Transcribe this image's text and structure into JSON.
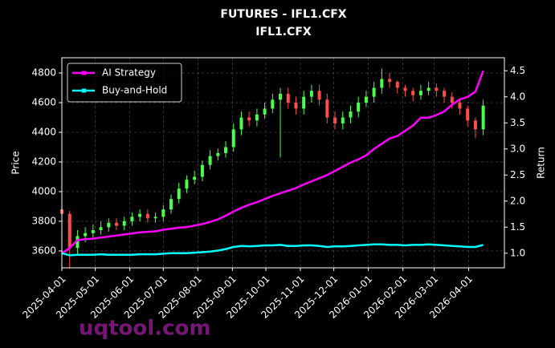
{
  "chart_data": {
    "type": "candlestick",
    "title": "FUTURES - IFL1.CFX",
    "subtitle": "IFL1.CFX",
    "y_label": "Price",
    "y2_label": "Return",
    "watermark": "uqtool.com",
    "x": [
      "2025-04-01",
      "2025-04-08",
      "2025-04-15",
      "2025-04-22",
      "2025-04-29",
      "2025-05-06",
      "2025-05-13",
      "2025-05-20",
      "2025-05-27",
      "2025-06-03",
      "2025-06-10",
      "2025-06-17",
      "2025-06-24",
      "2025-07-01",
      "2025-07-08",
      "2025-07-15",
      "2025-07-22",
      "2025-07-29",
      "2025-08-05",
      "2025-08-12",
      "2025-08-19",
      "2025-08-26",
      "2025-09-02",
      "2025-09-09",
      "2025-09-16",
      "2025-09-23",
      "2025-09-30",
      "2025-10-07",
      "2025-10-14",
      "2025-10-21",
      "2025-10-28",
      "2025-11-04",
      "2025-11-11",
      "2025-11-18",
      "2025-11-25",
      "2025-12-02",
      "2025-12-09",
      "2025-12-16",
      "2025-12-23",
      "2025-12-30",
      "2026-01-06",
      "2026-01-13",
      "2026-01-20",
      "2026-01-27",
      "2026-02-03",
      "2026-02-10",
      "2026-02-17",
      "2026-02-24",
      "2026-03-03",
      "2026-03-10",
      "2026-03-17",
      "2026-03-24",
      "2026-03-31",
      "2026-04-07",
      "2026-04-14"
    ],
    "open": [
      3880,
      3850,
      3620,
      3700,
      3720,
      3740,
      3760,
      3790,
      3770,
      3800,
      3830,
      3850,
      3820,
      3830,
      3880,
      3950,
      4020,
      4080,
      4100,
      4180,
      4240,
      4260,
      4300,
      4420,
      4500,
      4480,
      4520,
      4560,
      4620,
      4660,
      4600,
      4560,
      4640,
      4680,
      4620,
      4500,
      4460,
      4500,
      4540,
      4600,
      4640,
      4700,
      4760,
      4740,
      4700,
      4680,
      4650,
      4680,
      4700,
      4680,
      4640,
      4600,
      4560,
      4480,
      4420
    ],
    "high": [
      3910,
      3870,
      3740,
      3760,
      3780,
      3800,
      3820,
      3820,
      3830,
      3860,
      3880,
      3880,
      3860,
      3910,
      3980,
      4060,
      4110,
      4140,
      4210,
      4280,
      4290,
      4340,
      4460,
      4540,
      4540,
      4560,
      4600,
      4660,
      4700,
      4700,
      4640,
      4680,
      4720,
      4720,
      4660,
      4540,
      4540,
      4580,
      4640,
      4680,
      4740,
      4830,
      4800,
      4750,
      4720,
      4700,
      4720,
      4740,
      4730,
      4700,
      4670,
      4620,
      4580,
      4500,
      4620
    ],
    "low": [
      3820,
      3480,
      3580,
      3660,
      3690,
      3710,
      3730,
      3740,
      3740,
      3770,
      3800,
      3790,
      3790,
      3800,
      3850,
      3920,
      3990,
      4050,
      4070,
      4150,
      4210,
      4230,
      4270,
      4380,
      4440,
      4440,
      4490,
      4530,
      4230,
      4560,
      4520,
      4520,
      4600,
      4580,
      4460,
      4420,
      4420,
      4460,
      4500,
      4570,
      4600,
      4660,
      4700,
      4660,
      4640,
      4610,
      4620,
      4650,
      4640,
      4600,
      4560,
      4520,
      4440,
      4360,
      4380
    ],
    "close": [
      3850,
      3620,
      3700,
      3720,
      3740,
      3760,
      3790,
      3770,
      3800,
      3830,
      3850,
      3820,
      3830,
      3880,
      3950,
      4020,
      4080,
      4100,
      4180,
      4240,
      4260,
      4300,
      4420,
      4500,
      4480,
      4520,
      4560,
      4620,
      4660,
      4600,
      4560,
      4640,
      4680,
      4620,
      4500,
      4460,
      4500,
      4540,
      4600,
      4640,
      4700,
      4760,
      4740,
      4700,
      4680,
      4650,
      4680,
      4700,
      4680,
      4640,
      4600,
      4560,
      4480,
      4420,
      4580
    ],
    "up_color": "#4cff4c",
    "down_color": "#ff4d4d",
    "series": [
      {
        "name": "AI Strategy",
        "color": "#ff00ff",
        "axis": "y2",
        "values": [
          1.0,
          1.1,
          1.25,
          1.27,
          1.28,
          1.3,
          1.32,
          1.34,
          1.36,
          1.38,
          1.4,
          1.41,
          1.42,
          1.45,
          1.47,
          1.49,
          1.5,
          1.53,
          1.56,
          1.6,
          1.65,
          1.72,
          1.8,
          1.87,
          1.93,
          1.98,
          2.04,
          2.1,
          2.15,
          2.2,
          2.25,
          2.32,
          2.38,
          2.44,
          2.5,
          2.58,
          2.66,
          2.74,
          2.8,
          2.88,
          3.0,
          3.1,
          3.2,
          3.25,
          3.35,
          3.45,
          3.6,
          3.6,
          3.65,
          3.72,
          3.85,
          3.95,
          4.0,
          4.1,
          4.5
        ]
      },
      {
        "name": "Buy-and-Hold",
        "color": "#00ffff",
        "axis": "y2",
        "values": [
          1.0,
          0.96,
          0.97,
          0.97,
          0.97,
          0.98,
          0.97,
          0.97,
          0.97,
          0.97,
          0.98,
          0.98,
          0.98,
          0.99,
          1.0,
          1.0,
          1.0,
          1.01,
          1.02,
          1.03,
          1.05,
          1.08,
          1.12,
          1.14,
          1.13,
          1.14,
          1.15,
          1.15,
          1.16,
          1.14,
          1.14,
          1.15,
          1.15,
          1.14,
          1.12,
          1.13,
          1.13,
          1.14,
          1.15,
          1.16,
          1.17,
          1.17,
          1.16,
          1.16,
          1.15,
          1.16,
          1.16,
          1.17,
          1.16,
          1.15,
          1.14,
          1.13,
          1.12,
          1.12,
          1.16
        ]
      }
    ],
    "xlim": [
      "2025-04-01",
      "2026-05-03"
    ],
    "xticks": [
      "2025-04-01",
      "2025-05-01",
      "2025-06-01",
      "2025-07-01",
      "2025-08-01",
      "2025-09-01",
      "2025-10-01",
      "2025-11-01",
      "2025-12-01",
      "2026-01-01",
      "2026-02-01",
      "2026-03-01",
      "2026-04-01"
    ],
    "ylim": [
      3486,
      4903
    ],
    "yticks": [
      3600,
      3800,
      4000,
      4200,
      4400,
      4600,
      4800
    ],
    "y2lim": [
      0.72,
      4.75
    ],
    "y2ticks": [
      {
        "value": 1,
        "label": "1.0"
      },
      {
        "value": 1.5,
        "label": "1.5"
      },
      {
        "value": 2,
        "label": "2.0"
      },
      {
        "value": 2.5,
        "label": "2.5"
      },
      {
        "value": 3,
        "label": "3.0"
      },
      {
        "value": 3.5,
        "label": "3.5"
      },
      {
        "value": 4,
        "label": "4.0"
      },
      {
        "value": 4.5,
        "label": "4.5"
      }
    ],
    "grid": true,
    "legend": "upper left"
  }
}
